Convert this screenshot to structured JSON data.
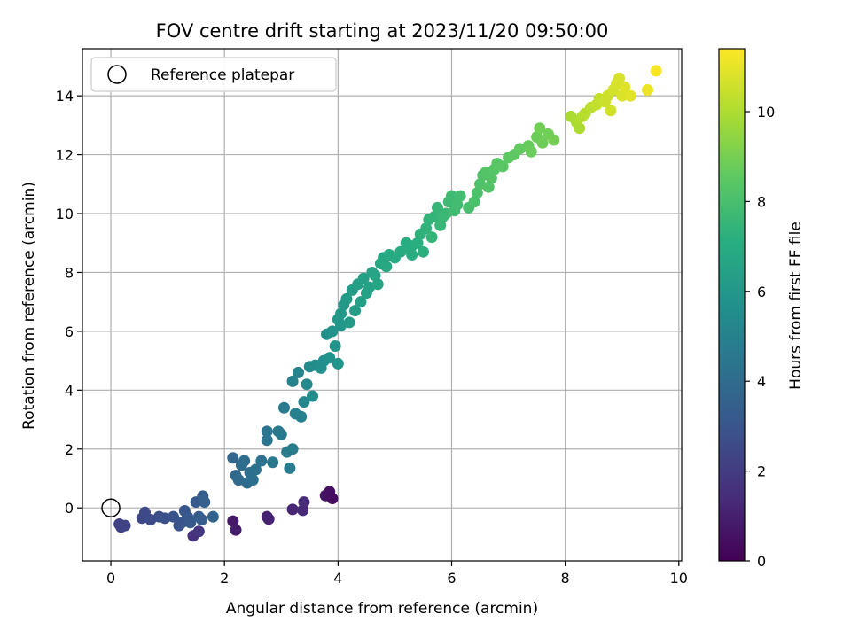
{
  "chart_data": {
    "type": "scatter",
    "title": "FOV centre drift starting at 2023/11/20 09:50:00",
    "xlabel": "Angular distance from reference (arcmin)",
    "ylabel": "Rotation from reference (arcmin)",
    "xlim": [
      -0.5,
      10.05
    ],
    "ylim": [
      -1.8,
      15.6
    ],
    "xticks": [
      0,
      2,
      4,
      6,
      8,
      10
    ],
    "yticks": [
      0,
      2,
      4,
      6,
      8,
      10,
      12,
      14
    ],
    "grid": true,
    "legend": {
      "placement": "top-left",
      "entries": [
        "Reference platepar"
      ]
    },
    "reference_point": {
      "x": 0,
      "y": 0,
      "label": "Reference platepar"
    },
    "colorbar": {
      "label": "Hours from first FF file",
      "colormap": "viridis",
      "range": [
        0,
        11.4
      ],
      "ticks": [
        0,
        2,
        4,
        6,
        8,
        10
      ]
    },
    "points": [
      [
        2.15,
        -0.45,
        0.8
      ],
      [
        2.2,
        -0.75,
        0.9
      ],
      [
        2.75,
        -0.3,
        1.0
      ],
      [
        2.78,
        -0.38,
        1.1
      ],
      [
        3.2,
        -0.05,
        1.2
      ],
      [
        3.38,
        -0.08,
        1.3
      ],
      [
        3.4,
        0.2,
        1.4
      ],
      [
        3.78,
        0.42,
        0.6
      ],
      [
        3.85,
        0.55,
        0.5
      ],
      [
        3.9,
        0.32,
        0.4
      ],
      [
        1.45,
        -0.95,
        1.6
      ],
      [
        1.55,
        -0.8,
        1.8
      ],
      [
        0.15,
        -0.55,
        2.2
      ],
      [
        0.18,
        -0.65,
        2.25
      ],
      [
        0.25,
        -0.6,
        2.3
      ],
      [
        0.55,
        -0.35,
        2.4
      ],
      [
        0.6,
        -0.15,
        2.5
      ],
      [
        0.7,
        -0.4,
        2.6
      ],
      [
        0.85,
        -0.3,
        2.7
      ],
      [
        0.95,
        -0.35,
        2.8
      ],
      [
        1.1,
        -0.3,
        2.9
      ],
      [
        1.25,
        -0.5,
        3.0
      ],
      [
        1.3,
        -0.1,
        3.05
      ],
      [
        1.35,
        -0.3,
        3.1
      ],
      [
        1.4,
        -0.5,
        3.15
      ],
      [
        1.5,
        0.2,
        3.2
      ],
      [
        1.55,
        -0.3,
        3.3
      ],
      [
        1.6,
        -0.4,
        3.35
      ],
      [
        1.62,
        0.4,
        3.4
      ],
      [
        1.65,
        0.2,
        3.45
      ],
      [
        1.8,
        -0.3,
        3.6
      ],
      [
        1.2,
        -0.6,
        2.95
      ],
      [
        2.15,
        1.7,
        3.8
      ],
      [
        2.2,
        1.1,
        3.85
      ],
      [
        2.25,
        0.95,
        3.9
      ],
      [
        2.3,
        1.45,
        3.95
      ],
      [
        2.35,
        1.6,
        4.0
      ],
      [
        2.4,
        0.85,
        4.05
      ],
      [
        2.45,
        1.2,
        4.1
      ],
      [
        2.5,
        0.95,
        4.15
      ],
      [
        2.55,
        1.3,
        4.2
      ],
      [
        2.65,
        1.6,
        4.25
      ],
      [
        2.75,
        2.6,
        4.4
      ],
      [
        2.75,
        2.3,
        4.45
      ],
      [
        2.85,
        1.55,
        4.5
      ],
      [
        2.95,
        2.6,
        4.55
      ],
      [
        3.0,
        2.5,
        4.6
      ],
      [
        3.05,
        3.4,
        4.65
      ],
      [
        3.1,
        1.9,
        4.7
      ],
      [
        3.15,
        1.35,
        4.75
      ],
      [
        3.2,
        2.0,
        4.8
      ],
      [
        3.25,
        3.2,
        4.85
      ],
      [
        3.35,
        3.1,
        4.9
      ],
      [
        3.2,
        4.3,
        5.0
      ],
      [
        3.3,
        4.6,
        5.1
      ],
      [
        3.4,
        3.6,
        5.2
      ],
      [
        3.45,
        4.2,
        5.3
      ],
      [
        3.5,
        4.8,
        5.4
      ],
      [
        3.55,
        3.8,
        5.45
      ],
      [
        3.6,
        4.85,
        5.5
      ],
      [
        3.7,
        4.75,
        5.6
      ],
      [
        3.75,
        5.0,
        5.65
      ],
      [
        3.8,
        5.9,
        5.7
      ],
      [
        3.85,
        5.1,
        5.75
      ],
      [
        3.9,
        6.0,
        5.8
      ],
      [
        3.95,
        5.5,
        5.85
      ],
      [
        4.0,
        4.9,
        5.9
      ],
      [
        4.05,
        6.2,
        5.95
      ],
      [
        4.0,
        6.4,
        6.0
      ],
      [
        4.05,
        6.6,
        6.05
      ],
      [
        4.1,
        6.9,
        6.1
      ],
      [
        4.15,
        7.1,
        6.15
      ],
      [
        4.2,
        6.3,
        6.2
      ],
      [
        4.25,
        7.4,
        6.25
      ],
      [
        4.3,
        6.7,
        6.3
      ],
      [
        4.35,
        7.6,
        6.35
      ],
      [
        4.4,
        7.0,
        6.4
      ],
      [
        4.45,
        7.8,
        6.45
      ],
      [
        4.5,
        7.3,
        6.5
      ],
      [
        4.55,
        7.5,
        6.55
      ],
      [
        4.6,
        8.0,
        6.6
      ],
      [
        4.65,
        7.9,
        6.65
      ],
      [
        4.7,
        7.6,
        6.7
      ],
      [
        4.75,
        8.3,
        6.75
      ],
      [
        4.8,
        8.5,
        6.8
      ],
      [
        4.85,
        8.2,
        6.85
      ],
      [
        4.9,
        8.6,
        6.9
      ],
      [
        5.0,
        8.5,
        6.95
      ],
      [
        5.1,
        8.7,
        7.0
      ],
      [
        5.2,
        8.8,
        7.05
      ],
      [
        5.3,
        8.9,
        7.1
      ],
      [
        5.4,
        9.0,
        7.15
      ],
      [
        5.5,
        8.7,
        7.2
      ],
      [
        5.3,
        8.6,
        7.1
      ],
      [
        5.2,
        9.0,
        7.05
      ],
      [
        5.45,
        9.3,
        7.3
      ],
      [
        5.55,
        9.5,
        7.35
      ],
      [
        5.6,
        9.8,
        7.4
      ],
      [
        5.7,
        9.9,
        7.45
      ],
      [
        5.75,
        10.2,
        7.5
      ],
      [
        5.8,
        9.6,
        7.55
      ],
      [
        5.85,
        9.9,
        7.6
      ],
      [
        5.9,
        10.0,
        7.65
      ],
      [
        5.95,
        10.4,
        7.7
      ],
      [
        6.0,
        10.6,
        7.75
      ],
      [
        6.05,
        10.1,
        7.8
      ],
      [
        6.1,
        10.3,
        7.85
      ],
      [
        6.15,
        10.6,
        7.9
      ],
      [
        5.65,
        9.2,
        7.45
      ],
      [
        6.3,
        10.2,
        8.0
      ],
      [
        6.4,
        10.4,
        8.05
      ],
      [
        6.45,
        10.7,
        8.1
      ],
      [
        6.5,
        11.0,
        8.15
      ],
      [
        6.55,
        11.3,
        8.2
      ],
      [
        6.6,
        11.4,
        8.25
      ],
      [
        6.7,
        11.2,
        8.3
      ],
      [
        6.75,
        11.5,
        8.35
      ],
      [
        6.8,
        11.7,
        8.4
      ],
      [
        6.9,
        11.6,
        8.45
      ],
      [
        7.0,
        11.9,
        8.5
      ],
      [
        7.1,
        12.0,
        8.55
      ],
      [
        7.2,
        12.2,
        8.6
      ],
      [
        7.35,
        12.3,
        8.7
      ],
      [
        7.4,
        12.1,
        8.75
      ],
      [
        7.5,
        12.6,
        8.8
      ],
      [
        7.6,
        12.4,
        8.85
      ],
      [
        7.7,
        12.7,
        8.9
      ],
      [
        7.8,
        12.5,
        8.95
      ],
      [
        7.55,
        12.9,
        8.9
      ],
      [
        6.65,
        10.9,
        8.25
      ],
      [
        8.1,
        13.3,
        9.9
      ],
      [
        8.2,
        13.1,
        10.0
      ],
      [
        8.3,
        13.3,
        10.1
      ],
      [
        8.35,
        13.4,
        10.15
      ],
      [
        8.45,
        13.6,
        10.25
      ],
      [
        8.55,
        13.7,
        10.35
      ],
      [
        8.6,
        13.9,
        10.4
      ],
      [
        8.7,
        13.8,
        10.5
      ],
      [
        8.75,
        14.0,
        10.55
      ],
      [
        8.8,
        13.5,
        10.6
      ],
      [
        8.85,
        14.2,
        10.65
      ],
      [
        8.9,
        14.4,
        10.7
      ],
      [
        9.0,
        14.0,
        10.8
      ],
      [
        9.05,
        14.3,
        10.85
      ],
      [
        9.15,
        14.0,
        10.9
      ],
      [
        9.45,
        14.2,
        11.1
      ],
      [
        9.6,
        14.85,
        11.3
      ],
      [
        8.25,
        12.9,
        9.95
      ],
      [
        8.95,
        14.6,
        10.75
      ]
    ]
  }
}
